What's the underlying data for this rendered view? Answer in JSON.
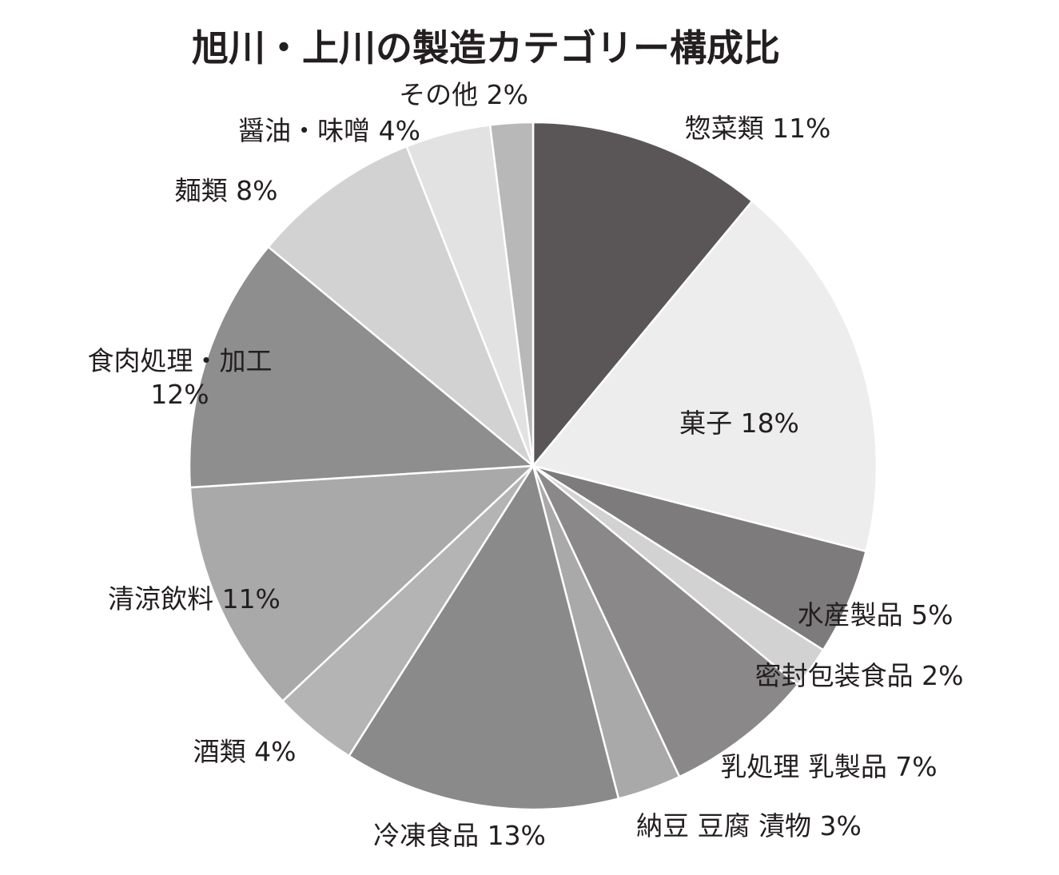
{
  "chart_data": {
    "type": "pie",
    "title": "旭川・上川の製造カテゴリー構成比",
    "slices": [
      {
        "label": "惣菜類",
        "value": 11,
        "text": "惣菜類 11%",
        "color": "#5a5657"
      },
      {
        "label": "菓子",
        "value": 18,
        "text": "菓子 18%",
        "color": "#ededed"
      },
      {
        "label": "水産製品",
        "value": 5,
        "text": "水産製品 5%",
        "color": "#7d7b7c"
      },
      {
        "label": "密封包装食品",
        "value": 2,
        "text": "密封包装食品 2%",
        "color": "#d2d2d3"
      },
      {
        "label": "乳処理 乳製品",
        "value": 7,
        "text": "乳処理 乳製品 7%",
        "color": "#8a8889"
      },
      {
        "label": "納豆 豆腐 漬物",
        "value": 3,
        "text": "納豆 豆腐 漬物 3%",
        "color": "#a9a9a9"
      },
      {
        "label": "冷凍食品",
        "value": 13,
        "text": "冷凍食品 13%",
        "color": "#8a8a8a"
      },
      {
        "label": "酒類",
        "value": 4,
        "text": "酒類 4%",
        "color": "#b4b4b4"
      },
      {
        "label": "清涼飲料",
        "value": 11,
        "text": "清涼飲料 11%",
        "color": "#a9a9a9"
      },
      {
        "label": "食肉処理・加工",
        "value": 12,
        "text": "食肉処理・加工",
        "text2": "12%",
        "color": "#8e8e8e"
      },
      {
        "label": "麺類",
        "value": 8,
        "text": "麺類 8%",
        "color": "#d2d2d3"
      },
      {
        "label": "醤油・味噌",
        "value": 4,
        "text": "醤油・味噌 4%",
        "color": "#e2e2e3"
      },
      {
        "label": "その他",
        "value": 2,
        "text": "その他 2%",
        "color": "#b8b8b8"
      }
    ]
  }
}
